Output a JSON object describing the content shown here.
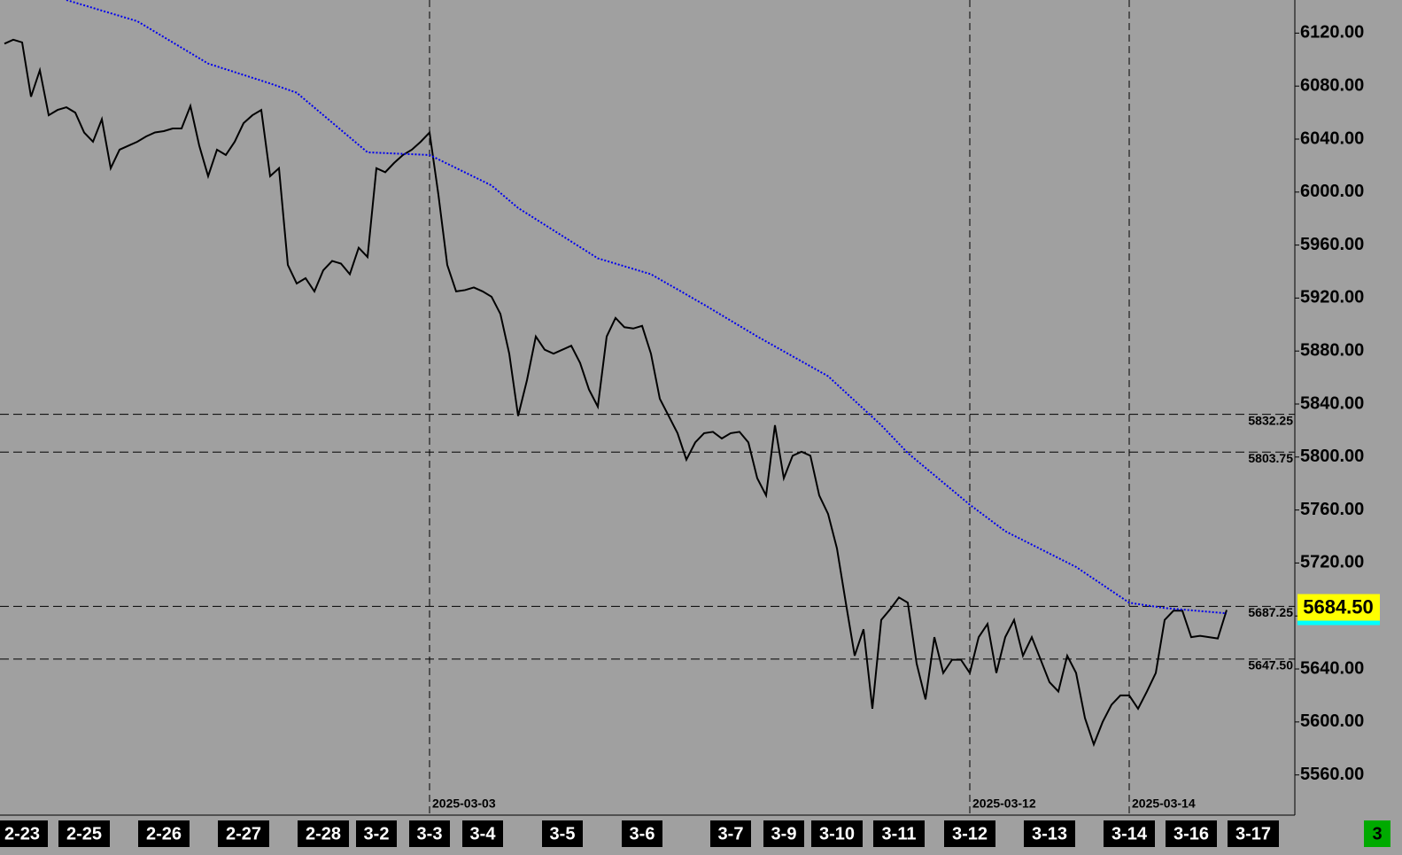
{
  "chart_data": {
    "type": "line",
    "categories": [
      null,
      null,
      "2-23",
      null,
      null,
      null,
      null,
      null,
      null,
      "2-25",
      null,
      null,
      null,
      null,
      null,
      null,
      null,
      null,
      "2-26",
      null,
      null,
      null,
      null,
      null,
      null,
      null,
      null,
      "2-27",
      null,
      null,
      null,
      null,
      null,
      null,
      null,
      null,
      "2-28",
      null,
      null,
      null,
      null,
      null,
      "3-2",
      null,
      null,
      null,
      null,
      null,
      "3-3",
      null,
      null,
      null,
      null,
      null,
      "3-4",
      null,
      null,
      null,
      null,
      null,
      null,
      null,
      null,
      "3-5",
      null,
      null,
      null,
      null,
      null,
      null,
      null,
      null,
      "3-6",
      null,
      null,
      null,
      null,
      null,
      null,
      null,
      null,
      null,
      "3-7",
      null,
      null,
      null,
      null,
      null,
      "3-9",
      null,
      null,
      null,
      null,
      null,
      "3-10",
      null,
      null,
      null,
      null,
      null,
      null,
      "3-11",
      null,
      null,
      null,
      null,
      null,
      null,
      null,
      "3-12",
      null,
      null,
      null,
      null,
      null,
      null,
      null,
      null,
      "3-13",
      null,
      null,
      null,
      null,
      null,
      null,
      null,
      null,
      "3-14",
      null,
      null,
      null,
      null,
      null,
      null,
      "3-16",
      null,
      null,
      null,
      null,
      null,
      null,
      "3-17",
      null
    ],
    "series": [
      {
        "color": "#000000",
        "values": [
          6112,
          6115,
          6113,
          6072,
          6092,
          6058,
          6062,
          6064,
          6060,
          6045,
          6038,
          6055,
          6018,
          6032,
          6035,
          6038,
          6042,
          6045,
          6046,
          6048,
          6048,
          6065,
          6035,
          6012,
          6032,
          6028,
          6038,
          6052,
          6058,
          6062,
          6012,
          6018,
          5945,
          5931,
          5935,
          5925,
          5941,
          5948,
          5946,
          5938,
          5958,
          5951,
          6018,
          6015,
          6022,
          6028,
          6032,
          6038,
          6045,
          5998,
          5945,
          5925,
          5926,
          5928,
          5925,
          5921,
          5908,
          5878,
          5831,
          5858,
          5891,
          5881,
          5878,
          5881,
          5884,
          5871,
          5851,
          5838,
          5891,
          5905,
          5898,
          5897,
          5899,
          5878,
          5844,
          5831,
          5818,
          5798,
          5811,
          5818,
          5819,
          5814,
          5818,
          5819,
          5811,
          5784,
          5771,
          5824,
          5784,
          5801,
          5804,
          5801,
          5771,
          5757,
          5731,
          5690,
          5650,
          5670,
          5610,
          5677,
          5685,
          5694,
          5690,
          5644,
          5617,
          5664,
          5637,
          5647,
          5647,
          5637,
          5664,
          5674,
          5637,
          5664,
          5677,
          5650,
          5664,
          5647,
          5630,
          5623,
          5650,
          5637,
          5603,
          5583,
          5600,
          5613,
          5620,
          5620,
          5610,
          5623,
          5637,
          5677,
          5684,
          5684,
          5664,
          5665,
          5664,
          5663,
          5684.5,
          null,
          null,
          null,
          null
        ]
      }
    ],
    "moving_average": {
      "color": "#0000ee",
      "x": [
        7,
        15,
        23,
        30,
        33,
        41,
        48,
        55,
        58,
        67,
        73,
        79,
        85,
        93,
        99,
        102,
        109,
        113,
        121,
        127,
        131,
        138
      ],
      "values": [
        6145,
        6129,
        6097,
        6082,
        6075,
        6030,
        6028,
        6005,
        5988,
        5950,
        5938,
        5915,
        5891,
        5861,
        5824,
        5803,
        5764,
        5744,
        5717,
        5690,
        5686,
        5682
      ]
    },
    "ylim": [
      5531,
      6145
    ],
    "yticks": [
      {
        "value": 5560,
        "label": "5560.00"
      },
      {
        "value": 5600,
        "label": "5600.00"
      },
      {
        "value": 5640,
        "label": "5640.00"
      },
      {
        "value": 5680,
        "label": "5680.00"
      },
      {
        "value": 5720,
        "label": "5720.00"
      },
      {
        "value": 5760,
        "label": "5760.00"
      },
      {
        "value": 5800,
        "label": "5800.00"
      },
      {
        "value": 5840,
        "label": "5840.00"
      },
      {
        "value": 5880,
        "label": "5880.00"
      },
      {
        "value": 5920,
        "label": "5920.00"
      },
      {
        "value": 5960,
        "label": "5960.00"
      },
      {
        "value": 6000,
        "label": "6000.00"
      },
      {
        "value": 6040,
        "label": "6040.00"
      },
      {
        "value": 6080,
        "label": "6080.00"
      },
      {
        "value": 6120,
        "label": "6120.00"
      }
    ],
    "levels": [
      {
        "value": 5832.25,
        "label": "5832.25"
      },
      {
        "value": 5803.75,
        "label": "5803.75"
      },
      {
        "value": 5687.25,
        "label": "5687.25"
      },
      {
        "value": 5647.5,
        "label": "5647.50"
      }
    ],
    "session_lines": [
      {
        "x": 48,
        "label": "2025-03-03"
      },
      {
        "x": 109,
        "label": "2025-03-12"
      },
      {
        "x": 127,
        "label": "2025-03-14"
      }
    ],
    "last_price": {
      "value": 5684.5,
      "label": "5684.50"
    },
    "status_badge": "3"
  }
}
